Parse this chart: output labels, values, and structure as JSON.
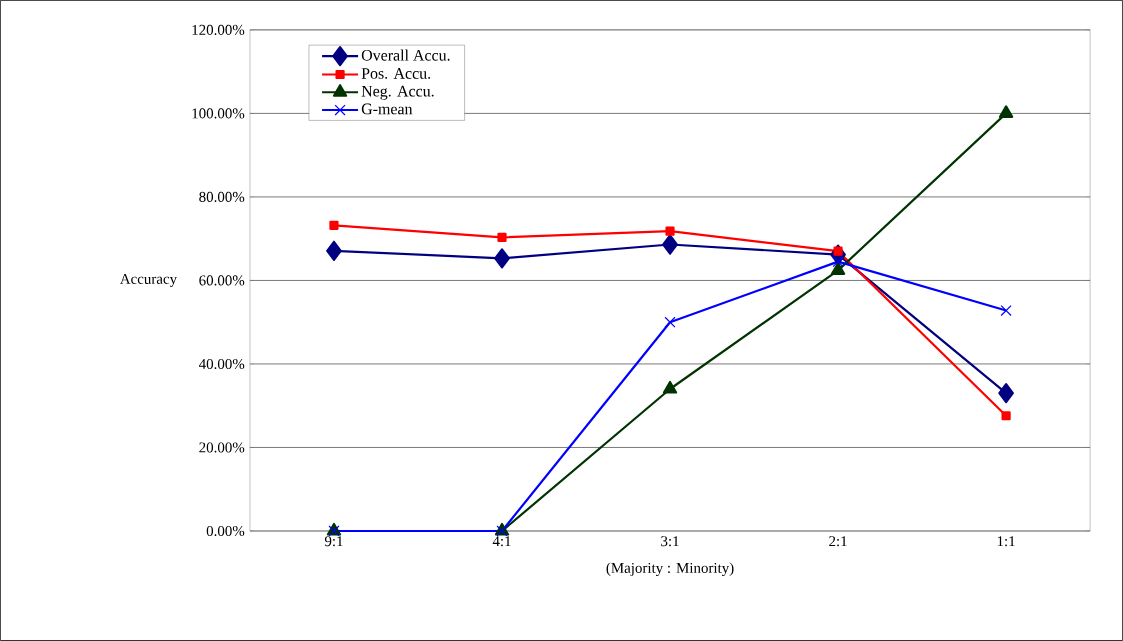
{
  "chart_data": {
    "type": "line",
    "xlabel": "(Majority : Minority)",
    "ylabel": "Accuracy",
    "categories": [
      "9:1",
      "4:1",
      "3:1",
      "2:1",
      "1:1"
    ],
    "series": [
      {
        "name": "Overall Accu.",
        "color": "#000080",
        "marker": "diamond",
        "values": [
          67.1,
          65.3,
          68.6,
          66.2,
          33
        ]
      },
      {
        "name": "Pos. Accu.",
        "color": "#ff0000",
        "marker": "square",
        "values": [
          73.2,
          70.3,
          71.8,
          67,
          27.6
        ]
      },
      {
        "name": "Neg. Accu.",
        "color": "#003300",
        "marker": "triangle",
        "values": [
          0,
          0,
          34,
          62.4,
          100
        ]
      },
      {
        "name": "G-mean",
        "color": "#0000ff",
        "marker": "cross",
        "values": [
          0,
          0,
          50,
          64.5,
          52.8
        ]
      }
    ],
    "ylim": [
      0,
      120
    ],
    "yticks": [
      {
        "value": 0,
        "label": "0.00%"
      },
      {
        "value": 20,
        "label": "20.00%"
      },
      {
        "value": 40,
        "label": "40.00%"
      },
      {
        "value": 60,
        "label": "60.00%"
      },
      {
        "value": 80,
        "label": "80.00%"
      },
      {
        "value": 100,
        "label": "100.00%"
      },
      {
        "value": 120,
        "label": "120.00%"
      }
    ],
    "grid": "y",
    "legend": "top left",
    "line_style": "solid"
  }
}
